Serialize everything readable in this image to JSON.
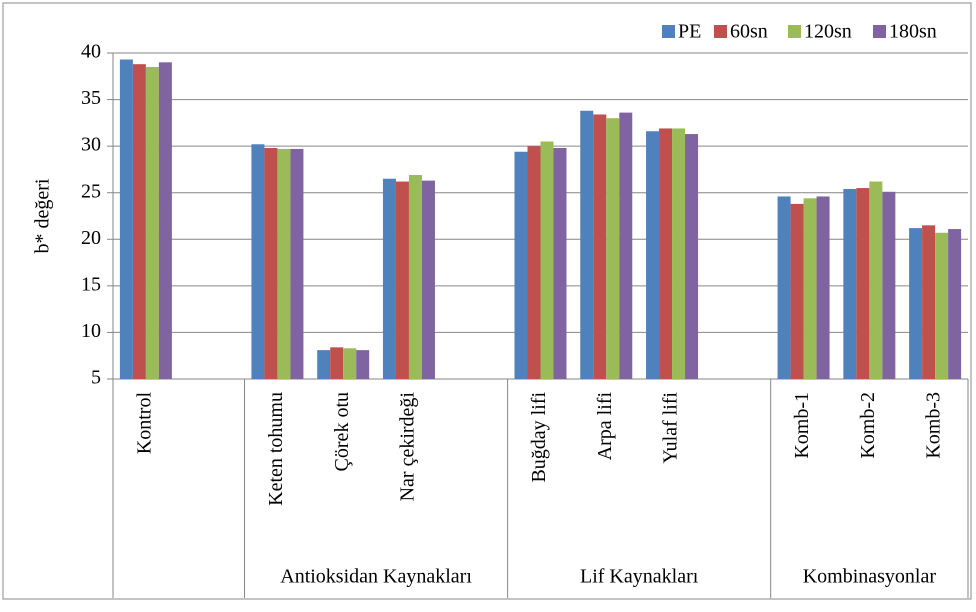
{
  "chart_data": {
    "type": "bar",
    "y_label": "b* değeri",
    "categories": [
      "Kontrol",
      null,
      "Keten tohumu",
      "Çörek otu",
      "Nar çekirdeği",
      null,
      "Buğday lifi",
      "Arpa lifi",
      "Yulaf lifi",
      null,
      "Komb-1",
      "Komb-2",
      "Komb-3"
    ],
    "groups": [
      {
        "name": "Antioksidan Kaynakları",
        "categories": [
          "Keten tohumu",
          "Çörek otu",
          "Nar çekirdeği"
        ]
      },
      {
        "name": "Lif Kaynakları",
        "categories": [
          "Buğday lifi",
          "Arpa lifi",
          "Yulaf lifi"
        ]
      },
      {
        "name": "Kombinasyonlar",
        "categories": [
          "Komb-1",
          "Komb-2",
          "Komb-3"
        ]
      }
    ],
    "series": [
      {
        "name": "PE",
        "color": "#4f81bd",
        "values": [
          39.3,
          null,
          30.2,
          8.1,
          26.5,
          null,
          29.4,
          33.8,
          31.6,
          null,
          24.6,
          25.4,
          21.2
        ]
      },
      {
        "name": "60sn",
        "color": "#c0504d",
        "values": [
          38.8,
          null,
          29.8,
          8.4,
          26.2,
          null,
          30.0,
          33.4,
          31.9,
          null,
          23.8,
          25.5,
          21.5
        ]
      },
      {
        "name": "120sn",
        "color": "#9bbb59",
        "values": [
          38.5,
          null,
          29.7,
          8.3,
          26.9,
          null,
          30.5,
          33.0,
          31.9,
          null,
          24.4,
          26.2,
          20.7
        ]
      },
      {
        "name": "180sn",
        "color": "#8064a2",
        "values": [
          39.0,
          null,
          29.7,
          8.1,
          26.3,
          null,
          29.8,
          33.6,
          31.3,
          null,
          24.6,
          25.1,
          21.1
        ]
      }
    ],
    "ylim": [
      5,
      40
    ],
    "yticks": [
      5,
      10,
      15,
      20,
      25,
      30,
      35,
      40
    ],
    "grid": true,
    "legend": "top-right"
  }
}
